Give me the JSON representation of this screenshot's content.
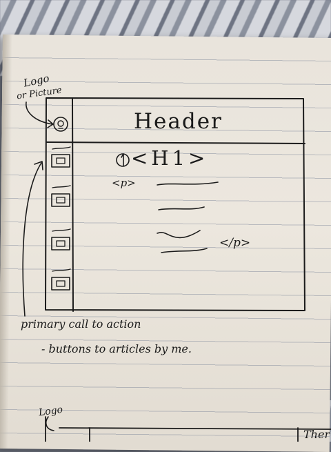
{
  "sketch": {
    "annotation_logo_line1": "Logo",
    "annotation_logo_line2": "or Picture",
    "header_label": "Header",
    "heading_tag": "<H1>",
    "para_open_tag": "<p>",
    "para_close_tag": "</p>",
    "cta_note_line1": "primary call to action",
    "cta_note_line2": "- buttons to articles by me.",
    "bottom_logo_label": "Logo",
    "bottom_header_fragment": "Ther"
  }
}
